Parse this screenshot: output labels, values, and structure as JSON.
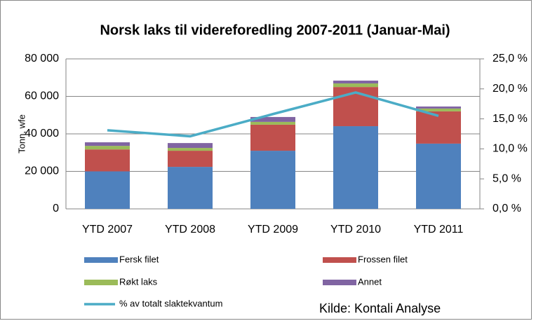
{
  "chart_data": {
    "type": "bar",
    "stacked": true,
    "title": "Norsk laks til videreforedling 2007-2011 (Januar-Mai)",
    "ylabel": "Tonn, wfe",
    "annotation": "Kilde: Kontali Analyse",
    "categories": [
      "YTD 2007",
      "YTD 2008",
      "YTD 2009",
      "YTD 2010",
      "YTD 2011"
    ],
    "series": [
      {
        "name": "Fersk filet",
        "color": "#4f81bd",
        "values": [
          20000,
          22400,
          31000,
          44100,
          34800
        ]
      },
      {
        "name": "Frossen filet",
        "color": "#c0504d",
        "values": [
          11700,
          8600,
          13900,
          20900,
          17200
        ]
      },
      {
        "name": "Røkt laks",
        "color": "#9bbb59",
        "values": [
          1900,
          1500,
          1500,
          1900,
          1500
        ]
      },
      {
        "name": "Annet",
        "color": "#8064a2",
        "values": [
          1900,
          2600,
          2600,
          1500,
          1100
        ]
      },
      {
        "name": "% av totalt slaktekvantum",
        "color": "#4bacc6",
        "type": "line",
        "axis": "y2",
        "values": [
          13.1,
          12.1,
          15.8,
          19.4,
          15.5
        ]
      }
    ],
    "ylim": [
      0,
      80000
    ],
    "yticks": [
      0,
      {
        "value": 20000,
        "label": "20 000"
      },
      {
        "value": 40000,
        "label": "40 000"
      },
      {
        "value": 60000,
        "label": "60 000"
      },
      {
        "value": 80000,
        "label": "80 000"
      }
    ],
    "y2lim": [
      0,
      25
    ],
    "y2ticks": [
      {
        "value": 0,
        "label": "0,0 %"
      },
      {
        "value": 5,
        "label": "5,0 %"
      },
      {
        "value": 10,
        "label": "10,0 %"
      },
      {
        "value": 15,
        "label": "15,0 %"
      },
      {
        "value": 20,
        "label": "20,0 %"
      },
      {
        "value": 25,
        "label": "25,0 %"
      }
    ],
    "grid": true
  }
}
